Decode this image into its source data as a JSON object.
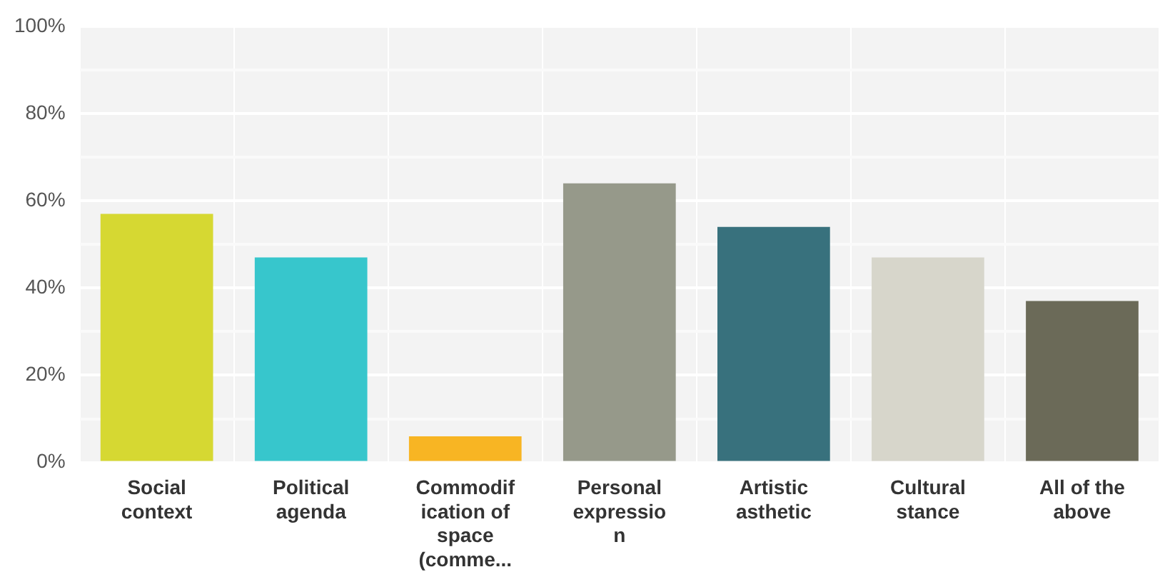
{
  "chart_data": {
    "type": "bar",
    "categories": [
      "Social context",
      "Political agenda",
      "Commodification of space (comme...",
      "Personal expression",
      "Artistic asthetic",
      "Cultural stance",
      "All of the above"
    ],
    "values": [
      57,
      47,
      6,
      64,
      54,
      47,
      37
    ],
    "colors": [
      "#d6d832",
      "#37c6cc",
      "#f8b523",
      "#96998a",
      "#38717d",
      "#d7d6cb",
      "#6b6a58"
    ],
    "ylim": [
      0,
      100
    ],
    "yticks": [
      {
        "value": 0,
        "label": "0%"
      },
      {
        "value": 10,
        "label": null
      },
      {
        "value": 20,
        "label": "20%"
      },
      {
        "value": 30,
        "label": null
      },
      {
        "value": 40,
        "label": "40%"
      },
      {
        "value": 50,
        "label": null
      },
      {
        "value": 60,
        "label": "60%"
      },
      {
        "value": 70,
        "label": null
      },
      {
        "value": 80,
        "label": "80%"
      },
      {
        "value": 90,
        "label": null
      },
      {
        "value": 100,
        "label": "100%"
      }
    ],
    "grid": true,
    "legend": false
  }
}
